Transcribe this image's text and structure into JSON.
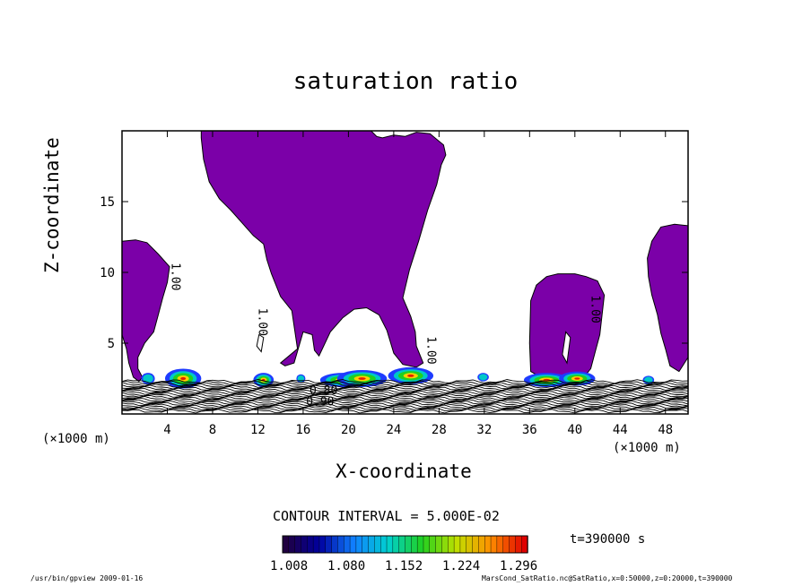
{
  "chart_data": {
    "type": "contour",
    "title": "saturation ratio",
    "xlabel": "X-coordinate",
    "ylabel": "Z-coordinate",
    "x_unit_left": "(×1000 m)",
    "x_unit_right": "(×1000 m)",
    "xlim": [
      0,
      50
    ],
    "ylim": [
      0,
      20
    ],
    "x_ticks": [
      4,
      8,
      12,
      16,
      20,
      24,
      28,
      32,
      36,
      40,
      44,
      48
    ],
    "y_ticks": [
      5,
      10,
      15
    ],
    "contour_interval_text": "CONTOUR INTERVAL = 5.000E-02",
    "contour_labels": [
      {
        "text": "1.00",
        "x": 4.4,
        "z": 9.7
      },
      {
        "text": "1.00",
        "x": 12.1,
        "z": 6.5
      },
      {
        "text": "1.00",
        "x": 27.0,
        "z": 4.5
      },
      {
        "text": "1.00",
        "x": 41.5,
        "z": 7.4
      },
      {
        "text": "0.90",
        "x": 17.5,
        "z": 0.6
      },
      {
        "text": "0.80",
        "x": 17.8,
        "z": 1.4
      }
    ],
    "saturated_regions": [
      {
        "name": "left column",
        "x_range": [
          0,
          4.2
        ],
        "z_top": 12.2
      },
      {
        "name": "central plume",
        "x_range": [
          7,
          30
        ],
        "z_top": 20
      },
      {
        "name": "right column",
        "x_range": [
          36,
          42.6
        ],
        "z_top": 9.8
      },
      {
        "name": "right edge column",
        "x_range": [
          46.3,
          50
        ],
        "z_top": 13.4
      }
    ],
    "colorbar": {
      "min": 1.008,
      "max": 1.296,
      "tick_labels": [
        "1.008",
        "1.080",
        "1.152",
        "1.224",
        "1.296"
      ],
      "colors": [
        "#200040",
        "#0000a0",
        "#1080ff",
        "#00d0d0",
        "#20d020",
        "#c0e000",
        "#ff9000",
        "#e00000"
      ]
    },
    "fill_color": "#7b00a8",
    "time_label": "t=390000 s"
  },
  "footer": {
    "left": "/usr/bin/gpview   2009-01-16",
    "right": "MarsCond_SatRatio.nc@SatRatio,x=0:50000,z=0:20000,t=390000"
  }
}
